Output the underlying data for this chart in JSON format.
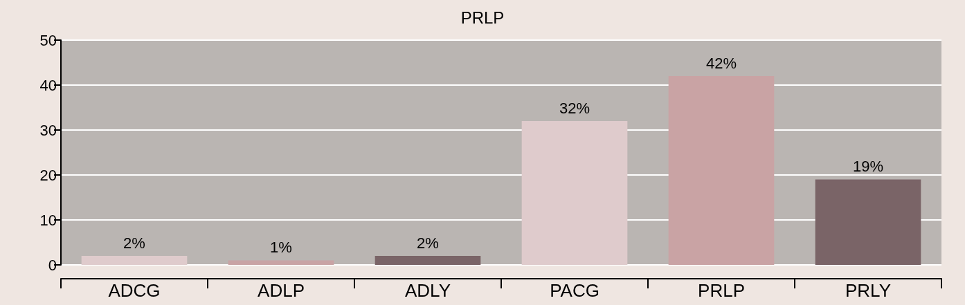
{
  "chart_data": {
    "type": "bar",
    "title": "PRLP",
    "categories": [
      "ADCG",
      "ADLP",
      "ADLY",
      "PACG",
      "PRLP",
      "PRLY"
    ],
    "values": [
      2,
      1,
      2,
      32,
      42,
      19
    ],
    "colors": [
      "#dfcbcc",
      "#c9a3a4",
      "#7a6467",
      "#dfcbcc",
      "#c9a3a4",
      "#7a6467"
    ],
    "value_labels": [
      "2%",
      "1%",
      "2%",
      "32%",
      "42%",
      "19%"
    ],
    "ylim": [
      0,
      50
    ],
    "yticks": [
      0,
      10,
      20,
      30,
      40,
      50
    ],
    "grid": "y"
  }
}
